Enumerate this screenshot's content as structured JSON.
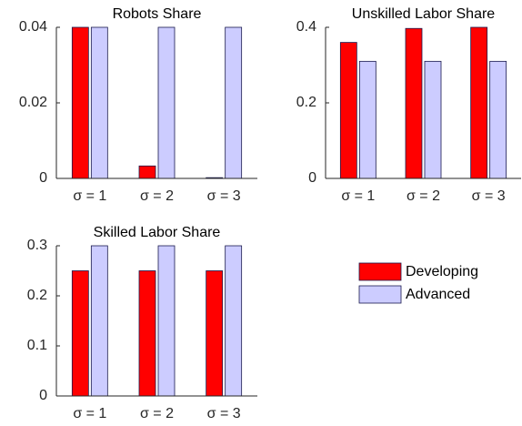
{
  "chart_data": [
    {
      "type": "bar",
      "title": "Robots Share",
      "categories": [
        "σ = 1",
        "σ = 2",
        "σ = 3"
      ],
      "series": [
        {
          "name": "Developing",
          "color": "#ff0000",
          "values": [
            0.04,
            0.0033,
            0.0002
          ]
        },
        {
          "name": "Advanced",
          "color": "#ccccff",
          "values": [
            0.04,
            0.04,
            0.04
          ]
        }
      ],
      "ylim": [
        0,
        0.04
      ],
      "yticks": [
        0,
        0.02,
        0.04
      ]
    },
    {
      "type": "bar",
      "title": "Unskilled Labor Share",
      "categories": [
        "σ = 1",
        "σ = 2",
        "σ = 3"
      ],
      "series": [
        {
          "name": "Developing",
          "color": "#ff0000",
          "values": [
            0.36,
            0.397,
            0.4
          ]
        },
        {
          "name": "Advanced",
          "color": "#ccccff",
          "values": [
            0.31,
            0.31,
            0.31
          ]
        }
      ],
      "ylim": [
        0,
        0.4
      ],
      "yticks": [
        0,
        0.2,
        0.4
      ]
    },
    {
      "type": "bar",
      "title": "Skilled Labor Share",
      "categories": [
        "σ = 1",
        "σ = 2",
        "σ = 3"
      ],
      "series": [
        {
          "name": "Developing",
          "color": "#ff0000",
          "values": [
            0.25,
            0.25,
            0.25
          ]
        },
        {
          "name": "Advanced",
          "color": "#ccccff",
          "values": [
            0.3,
            0.3,
            0.3
          ]
        }
      ],
      "ylim": [
        0,
        0.3
      ],
      "yticks": [
        0,
        0.1,
        0.2,
        0.3
      ]
    }
  ]
}
